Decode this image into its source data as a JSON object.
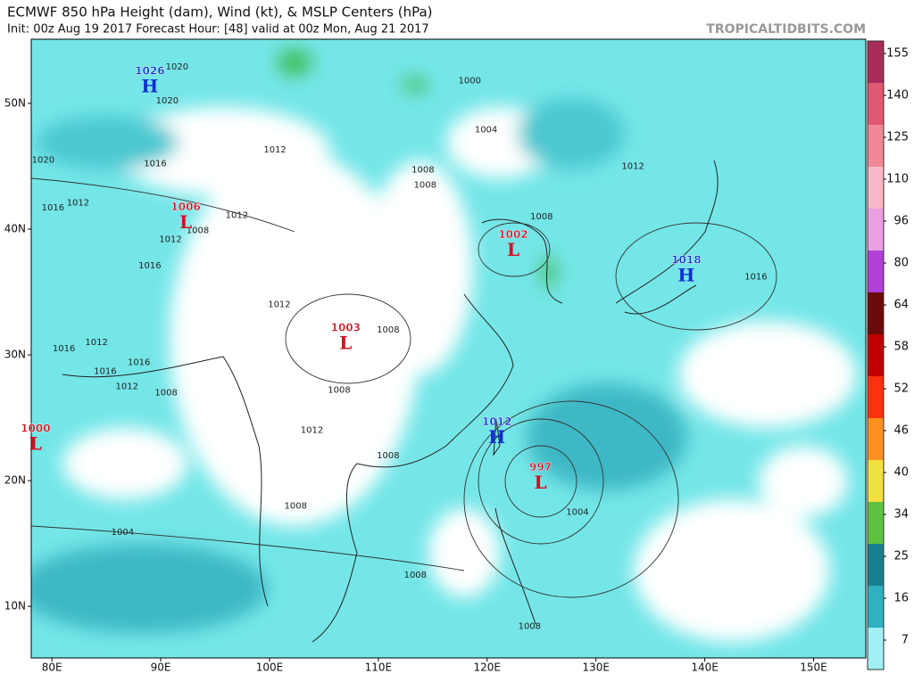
{
  "header": {
    "title": "ECMWF 850 hPa Height (dam), Wind (kt), & MSLP Centers (hPa)",
    "subtitle": "Init: 00z Aug 19 2017   Forecast Hour: [48]   valid at 00z Mon, Aug 21 2017",
    "brand": "TROPICALTIDBITS.COM"
  },
  "map": {
    "xlim": [
      78.1,
      154.8
    ],
    "ylim": [
      5.9,
      55.1
    ],
    "xticks": [
      {
        "value": 80,
        "label": "80E"
      },
      {
        "value": 90,
        "label": "90E"
      },
      {
        "value": 100,
        "label": "100E"
      },
      {
        "value": 110,
        "label": "110E"
      },
      {
        "value": 120,
        "label": "120E"
      },
      {
        "value": 130,
        "label": "130E"
      },
      {
        "value": 140,
        "label": "140E"
      },
      {
        "value": 150,
        "label": "150E"
      }
    ],
    "yticks": [
      {
        "value": 50,
        "label": "50N"
      },
      {
        "value": 40,
        "label": "40N"
      },
      {
        "value": 30,
        "label": "30N"
      },
      {
        "value": 20,
        "label": "20N"
      },
      {
        "value": 10,
        "label": "10N"
      }
    ],
    "centers": [
      {
        "kind": "H",
        "value": 1026,
        "lon": 89.0,
        "lat": 51.4
      },
      {
        "kind": "L",
        "value": 1006,
        "lon": 92.3,
        "lat": 40.6
      },
      {
        "kind": "L",
        "value": 1002,
        "lon": 122.4,
        "lat": 38.4
      },
      {
        "kind": "H",
        "value": 1018,
        "lon": 138.3,
        "lat": 36.4
      },
      {
        "kind": "L",
        "value": 1003,
        "lon": 107.0,
        "lat": 31.0
      },
      {
        "kind": "L",
        "value": 1000,
        "lon": 78.5,
        "lat": 23.0
      },
      {
        "kind": "H",
        "value": 1012,
        "lon": 120.9,
        "lat": 23.5
      },
      {
        "kind": "L",
        "value": 997,
        "lon": 124.9,
        "lat": 19.9
      }
    ],
    "contour_labels": [
      {
        "value": 1020,
        "lon": 91.5,
        "lat": 52.9
      },
      {
        "value": 1020,
        "lon": 90.6,
        "lat": 50.2
      },
      {
        "value": 1020,
        "lon": 79.2,
        "lat": 45.5
      },
      {
        "value": 1016,
        "lon": 89.5,
        "lat": 45.2
      },
      {
        "value": 1016,
        "lon": 80.1,
        "lat": 41.7
      },
      {
        "value": 1012,
        "lon": 82.4,
        "lat": 42.1
      },
      {
        "value": 1012,
        "lon": 97.0,
        "lat": 41.1
      },
      {
        "value": 1008,
        "lon": 93.4,
        "lat": 39.9
      },
      {
        "value": 1012,
        "lon": 90.9,
        "lat": 39.2
      },
      {
        "value": 1016,
        "lon": 89.0,
        "lat": 37.1
      },
      {
        "value": 1012,
        "lon": 100.5,
        "lat": 46.3
      },
      {
        "value": 1008,
        "lon": 114.1,
        "lat": 44.7
      },
      {
        "value": 1008,
        "lon": 114.3,
        "lat": 43.5
      },
      {
        "value": 1004,
        "lon": 119.9,
        "lat": 47.9
      },
      {
        "value": 1000,
        "lon": 118.4,
        "lat": 51.8
      },
      {
        "value": 1012,
        "lon": 133.4,
        "lat": 45.0
      },
      {
        "value": 1008,
        "lon": 125.0,
        "lat": 41.0
      },
      {
        "value": 1016,
        "lon": 144.7,
        "lat": 36.2
      },
      {
        "value": 1012,
        "lon": 100.9,
        "lat": 34.0
      },
      {
        "value": 1008,
        "lon": 110.9,
        "lat": 32.0
      },
      {
        "value": 1016,
        "lon": 81.1,
        "lat": 30.5
      },
      {
        "value": 1012,
        "lon": 84.1,
        "lat": 31.0
      },
      {
        "value": 1016,
        "lon": 84.9,
        "lat": 28.7
      },
      {
        "value": 1016,
        "lon": 88.0,
        "lat": 29.4
      },
      {
        "value": 1012,
        "lon": 86.9,
        "lat": 27.5
      },
      {
        "value": 1008,
        "lon": 90.5,
        "lat": 27.0
      },
      {
        "value": 1008,
        "lon": 106.4,
        "lat": 27.2
      },
      {
        "value": 1012,
        "lon": 103.9,
        "lat": 24.0
      },
      {
        "value": 1008,
        "lon": 110.9,
        "lat": 22.0
      },
      {
        "value": 1008,
        "lon": 102.4,
        "lat": 18.0
      },
      {
        "value": 1004,
        "lon": 86.5,
        "lat": 15.9
      },
      {
        "value": 1008,
        "lon": 113.4,
        "lat": 12.5
      },
      {
        "value": 1004,
        "lon": 128.3,
        "lat": 17.5
      },
      {
        "value": 1008,
        "lon": 123.9,
        "lat": 8.4
      }
    ],
    "center_colors": {
      "H": "#1030d0",
      "L": "#d01020"
    }
  },
  "colorbar": {
    "ticks": [
      155,
      140,
      125,
      110,
      96,
      80,
      64,
      58,
      52,
      46,
      40,
      34,
      25,
      16,
      7
    ],
    "colors": [
      "#a82c5a",
      "#e05874",
      "#f08898",
      "#f8b8c8",
      "#e8a0e0",
      "#b040d8",
      "#6a0a0a",
      "#c00000",
      "#ff3010",
      "#ff9020",
      "#f0e040",
      "#60c040",
      "#18808c",
      "#30b0c0",
      "#a0f0f4"
    ]
  }
}
